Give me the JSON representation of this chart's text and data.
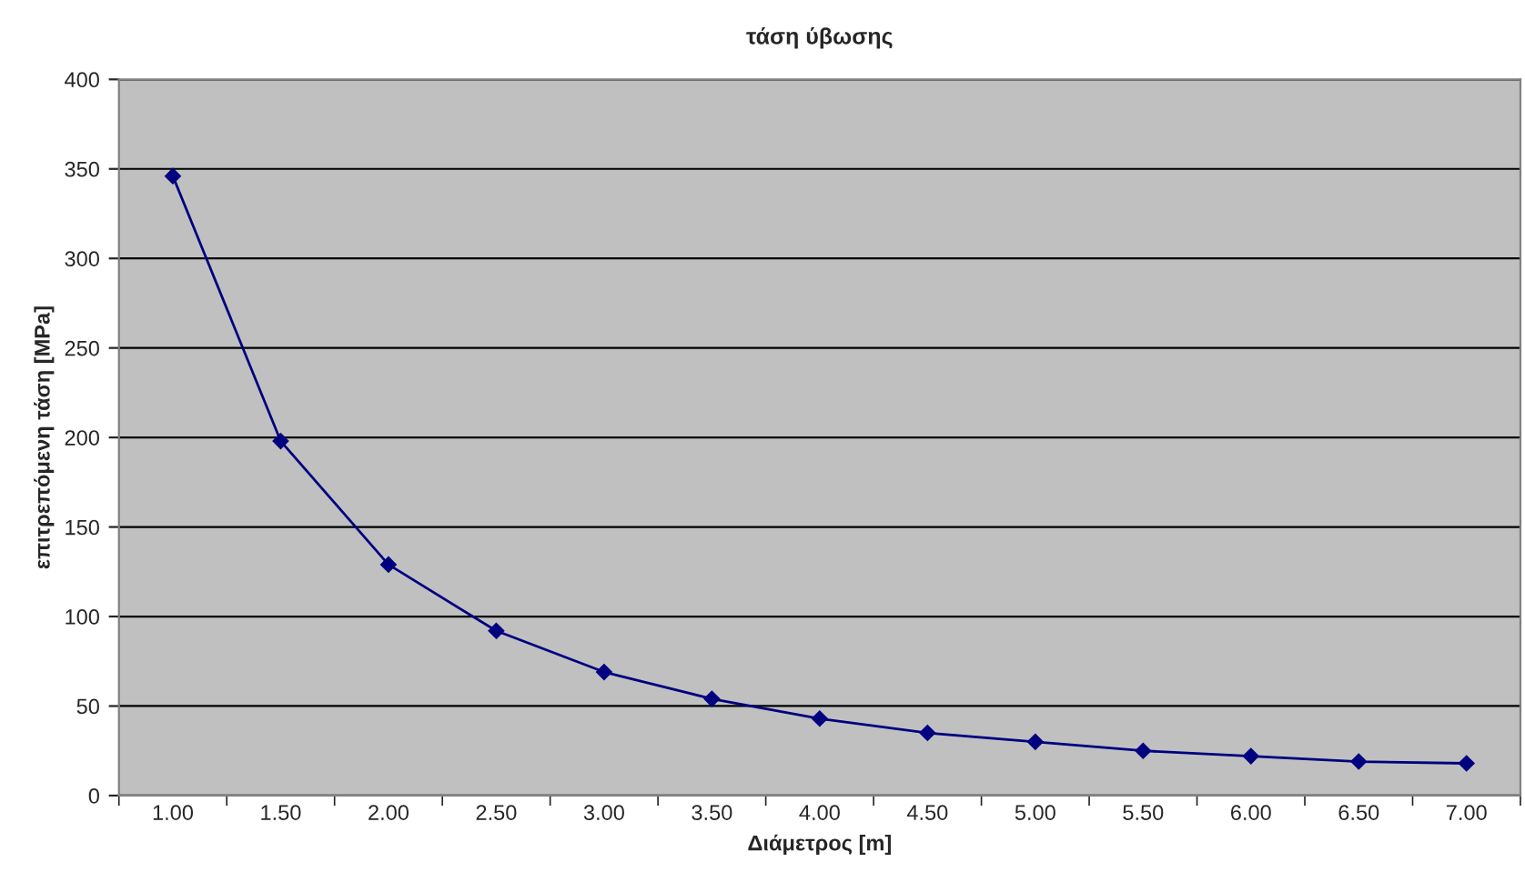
{
  "chart_data": {
    "type": "line",
    "title": "τάση ύβωσης",
    "xlabel": "Διάμετρος [m]",
    "ylabel": "επιτρεπόμενη τάση [MPa]",
    "categories": [
      "1.00",
      "1.50",
      "2.00",
      "2.50",
      "3.00",
      "3.50",
      "4.00",
      "4.50",
      "5.00",
      "5.50",
      "6.00",
      "6.50",
      "7.00"
    ],
    "series": [
      {
        "color": "#000080",
        "values": [
          346,
          198,
          129,
          92,
          69,
          54,
          43,
          35,
          30,
          25,
          22,
          19,
          18
        ]
      }
    ],
    "ylim": [
      0,
      400
    ],
    "yticks": [
      0,
      50,
      100,
      150,
      200,
      250,
      300,
      350,
      400
    ],
    "grid": "y",
    "marker": "diamond",
    "line_style": "solid",
    "legend": false
  }
}
